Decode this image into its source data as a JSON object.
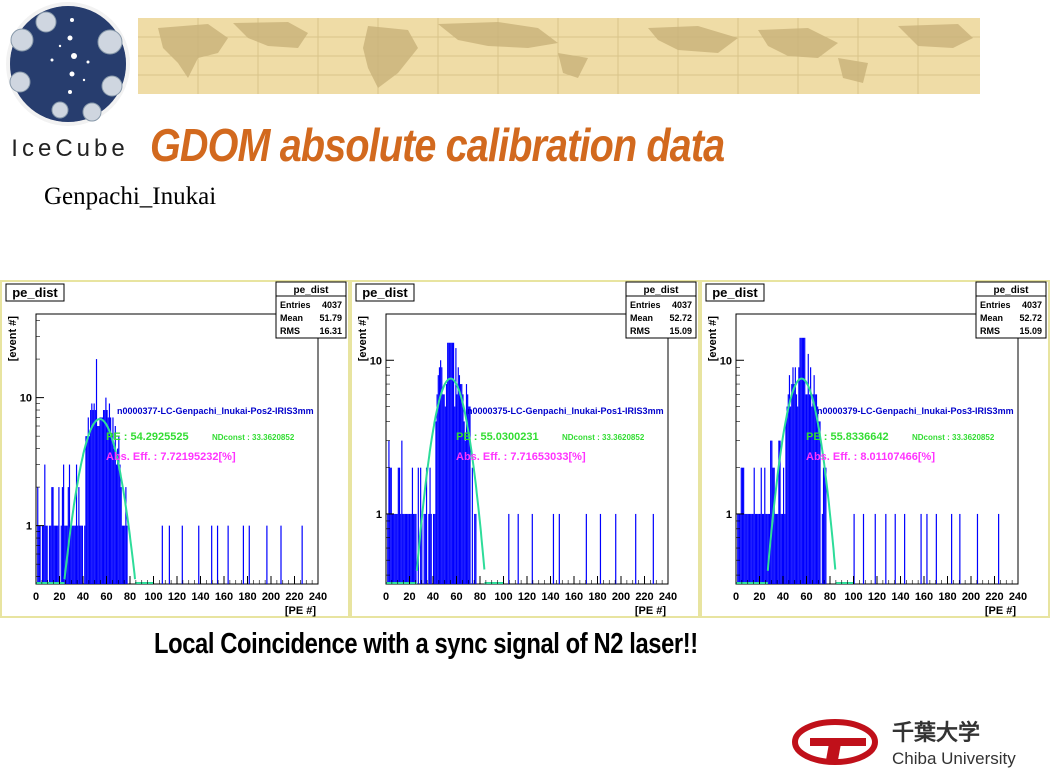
{
  "title": "GDOM absolute calibration data",
  "subtitle": "Genpachi_Inukai",
  "caption": "Local Coincidence with a sync signal of N2 laser!!",
  "logo": {
    "text": "IceCube"
  },
  "university": {
    "name_jp": "千葉大学",
    "name_en": "Chiba University"
  },
  "colors": {
    "title": "#d2691e",
    "histogram": "#0000ff",
    "fit": "#2edc9a",
    "pe_text": "#33dd33",
    "eff_text": "#ff33ff",
    "run_text": "#0000cc",
    "frame": "#e8e4a0"
  },
  "chart_data": [
    {
      "type": "bar",
      "panel_label": "pe_dist",
      "stats": {
        "name": "pe_dist",
        "entries_label": "Entries",
        "entries": "4037",
        "mean_label": "Mean",
        "mean": "51.79",
        "rms_label": "RMS",
        "rms": "16.31"
      },
      "ylabel": "[event #]",
      "xlabel": "[PE #]",
      "ylog": true,
      "ylim": [
        0.35,
        45
      ],
      "xlim": [
        0,
        240
      ],
      "xticks": [
        "0",
        "20",
        "40",
        "60",
        "80",
        "100",
        "120",
        "140",
        "160",
        "180",
        "200",
        "220",
        "240"
      ],
      "yticks": [
        "1",
        "10"
      ],
      "run": "n0000377-LC-Genpachi_Inukai-Pos2-IRIS3mm",
      "pe_text": "PE : 54.2925525",
      "ndconst": "NDconst : 33.3620852",
      "eff": "Abs. Eff. : 7.72195232[%]",
      "fit": {
        "mean": 54.29,
        "sigma": 12.5,
        "peak": 6.8
      },
      "peak_max": 20,
      "tail_bins": [
        107,
        113,
        124,
        138,
        149,
        154,
        163,
        176,
        181,
        196,
        208,
        226
      ]
    },
    {
      "type": "bar",
      "panel_label": "pe_dist",
      "stats": {
        "name": "pe_dist",
        "entries_label": "Entries",
        "entries": "4037",
        "mean_label": "Mean",
        "mean": "52.72",
        "rms_label": "RMS",
        "rms": "15.09"
      },
      "ylabel": "[event #]",
      "xlabel": "[PE #]",
      "ylog": true,
      "ylim": [
        0.35,
        20
      ],
      "xlim": [
        0,
        240
      ],
      "xticks": [
        "0",
        "20",
        "40",
        "60",
        "80",
        "100",
        "120",
        "140",
        "160",
        "180",
        "200",
        "220",
        "240"
      ],
      "yticks": [
        "1",
        "10"
      ],
      "run": "n0000375-LC-Genpachi_Inukai-Pos1-IRIS3mm",
      "pe_text": "PE : 55.0300231",
      "ndconst": "NDconst : 33.3620852",
      "eff": "Abs. Eff. : 7.71653033[%]",
      "fit": {
        "mean": 55.03,
        "sigma": 12.0,
        "peak": 7.6
      },
      "peak_max": 13,
      "tail_bins": [
        104,
        112,
        124,
        142,
        147,
        170,
        182,
        195,
        212,
        227
      ]
    },
    {
      "type": "bar",
      "panel_label": "pe_dist",
      "stats": {
        "name": "pe_dist",
        "entries_label": "Entries",
        "entries": "4037",
        "mean_label": "Mean",
        "mean": "52.72",
        "rms_label": "RMS",
        "rms": "15.09"
      },
      "ylabel": "[event #]",
      "xlabel": "[PE #]",
      "ylog": true,
      "ylim": [
        0.35,
        20
      ],
      "xlim": [
        0,
        240
      ],
      "xticks": [
        "0",
        "20",
        "40",
        "60",
        "80",
        "100",
        "120",
        "140",
        "160",
        "180",
        "200",
        "220",
        "240"
      ],
      "yticks": [
        "1",
        "10"
      ],
      "run": "n0000379-LC-Genpachi_Inukai-Pos3-IRIS3mm",
      "pe_text": "PE : 55.8336642",
      "ndconst": "NDconst : 33.3620852",
      "eff": "Abs. Eff. : 8.01107466[%]",
      "fit": {
        "mean": 55.83,
        "sigma": 12.0,
        "peak": 7.6
      },
      "peak_max": 14,
      "tail_bins": [
        100,
        108,
        118,
        127,
        135,
        143,
        157,
        162,
        170,
        183,
        190,
        205,
        223
      ]
    }
  ]
}
